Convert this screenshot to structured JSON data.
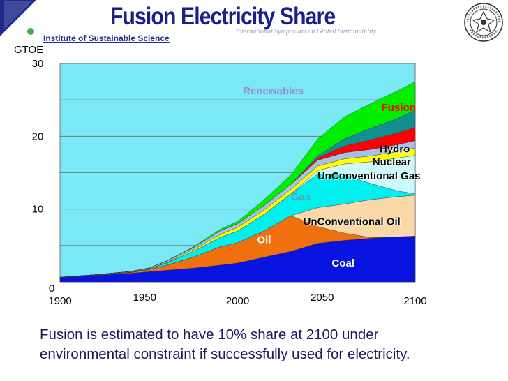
{
  "header": {
    "title": "Fusion Electricity Share",
    "institute": "Institute of Sustainable Science",
    "symposium": "International Symposium on Global Sustainability"
  },
  "caption": {
    "line1": "Fusion is estimated to have 10% share at 2100 under",
    "line2": "environmental constraint if successfully used for electricity."
  },
  "chart_data": {
    "type": "area",
    "stacked": true,
    "title": "Fusion Electricity Share",
    "ylabel": "GTOE",
    "xlabel": "",
    "xlim": [
      1900,
      2100
    ],
    "ylim": [
      0,
      30
    ],
    "x_ticks": [
      "1900",
      "1950",
      "2000",
      "2050",
      "2100"
    ],
    "y_ticks": [
      "0",
      "10",
      "20",
      "30"
    ],
    "x": [
      1900,
      1920,
      1940,
      1950,
      1960,
      1975,
      1990,
      2000,
      2015,
      2030,
      2045,
      2060,
      2075,
      2090,
      2100
    ],
    "series": [
      {
        "name": "Coal",
        "color": "#0a14e0",
        "values": [
          0.6,
          0.9,
          1.2,
          1.4,
          1.6,
          1.9,
          2.3,
          2.6,
          3.4,
          4.2,
          5.3,
          5.7,
          6.0,
          6.2,
          6.3
        ]
      },
      {
        "name": "Oil",
        "color": "#f07010",
        "values": [
          0.0,
          0.05,
          0.1,
          0.3,
          0.7,
          1.5,
          2.5,
          2.8,
          3.6,
          4.9,
          2.3,
          1.0,
          0.1,
          0.0,
          0.0
        ]
      },
      {
        "name": "UnConventional Oil",
        "color": "#fbd8a8",
        "values": [
          0.0,
          0.0,
          0.0,
          0.0,
          0.0,
          0.0,
          0.0,
          0.0,
          0.0,
          0.0,
          2.6,
          4.0,
          5.2,
          5.5,
          5.6
        ]
      },
      {
        "name": "Gas",
        "color": "#00f0f0",
        "values": [
          0.0,
          0.0,
          0.05,
          0.1,
          0.3,
          0.8,
          1.3,
          1.6,
          2.3,
          3.0,
          4.6,
          4.0,
          2.2,
          0.8,
          0.2
        ]
      },
      {
        "name": "UnConventional Gas",
        "color": "#ccfafa",
        "values": [
          0.0,
          0.0,
          0.0,
          0.0,
          0.0,
          0.0,
          0.0,
          0.0,
          0.0,
          0.0,
          0.5,
          1.5,
          3.0,
          4.5,
          5.3
        ]
      },
      {
        "name": "Nuclear",
        "color": "#ffff00",
        "values": [
          0.0,
          0.0,
          0.0,
          0.0,
          0.05,
          0.2,
          0.4,
          0.5,
          0.6,
          0.6,
          0.6,
          0.7,
          0.8,
          0.9,
          1.0
        ]
      },
      {
        "name": "Hydro",
        "color": "#a8c0e8",
        "values": [
          0.05,
          0.05,
          0.1,
          0.1,
          0.2,
          0.3,
          0.5,
          0.5,
          0.6,
          0.7,
          0.8,
          0.85,
          0.9,
          0.95,
          1.0
        ]
      },
      {
        "name": "Fusion",
        "color": "#ff0000",
        "values": [
          0.0,
          0.0,
          0.0,
          0.0,
          0.0,
          0.0,
          0.0,
          0.0,
          0.0,
          0.0,
          0.3,
          0.9,
          1.3,
          1.6,
          1.8
        ]
      },
      {
        "name": "Fusion (teal band)",
        "color": "#119090",
        "values": [
          0.0,
          0.0,
          0.0,
          0.0,
          0.0,
          0.0,
          0.0,
          0.0,
          0.0,
          0.0,
          0.3,
          1.0,
          1.6,
          2.0,
          2.4
        ]
      },
      {
        "name": "Renewables",
        "color": "#00ee00",
        "values": [
          0.0,
          0.0,
          0.0,
          0.0,
          0.05,
          0.1,
          0.2,
          0.3,
          0.8,
          1.3,
          2.3,
          3.0,
          3.4,
          3.8,
          3.9
        ]
      }
    ],
    "labels": [
      {
        "text": "Renewables",
        "series": "Renewables",
        "x": 2003,
        "y": 25.8,
        "color": "#9e88d6",
        "anchor": "start",
        "shadow": false
      },
      {
        "text": "Fusion",
        "series": "Fusion",
        "x": 2081,
        "y": 23.5,
        "color": "#ff0000",
        "anchor": "start",
        "shadow": false
      },
      {
        "text": "Hydro",
        "series": "Hydro",
        "x": 2080,
        "y": 17.8,
        "color": "#000000",
        "anchor": "start",
        "shadow": true
      },
      {
        "text": "Nuclear",
        "series": "Nuclear",
        "x": 2076,
        "y": 16.0,
        "color": "#000000",
        "anchor": "start",
        "shadow": true
      },
      {
        "text": "UnConventional  Gas",
        "series": "UnConventional Gas",
        "x": 2045,
        "y": 14.1,
        "color": "#000000",
        "anchor": "start",
        "shadow": true
      },
      {
        "text": "Gas",
        "series": "Gas",
        "x": 2030,
        "y": 11.2,
        "color": "#5da0b8",
        "anchor": "start",
        "shadow": false
      },
      {
        "text": "UnConventional Oil",
        "series": "UnConventional Oil",
        "x": 2037,
        "y": 7.8,
        "color": "#000000",
        "anchor": "start",
        "shadow": true
      },
      {
        "text": "Oil",
        "series": "Oil",
        "x": 2011,
        "y": 5.3,
        "color": "#ffffff",
        "anchor": "start",
        "shadow": false
      },
      {
        "text": "Coal",
        "series": "Coal",
        "x": 2053,
        "y": 2.1,
        "color": "#ffffff",
        "anchor": "start",
        "shadow": false
      }
    ],
    "plot_background": "#7ae8f5",
    "grid": true,
    "legend": "inline labels"
  }
}
